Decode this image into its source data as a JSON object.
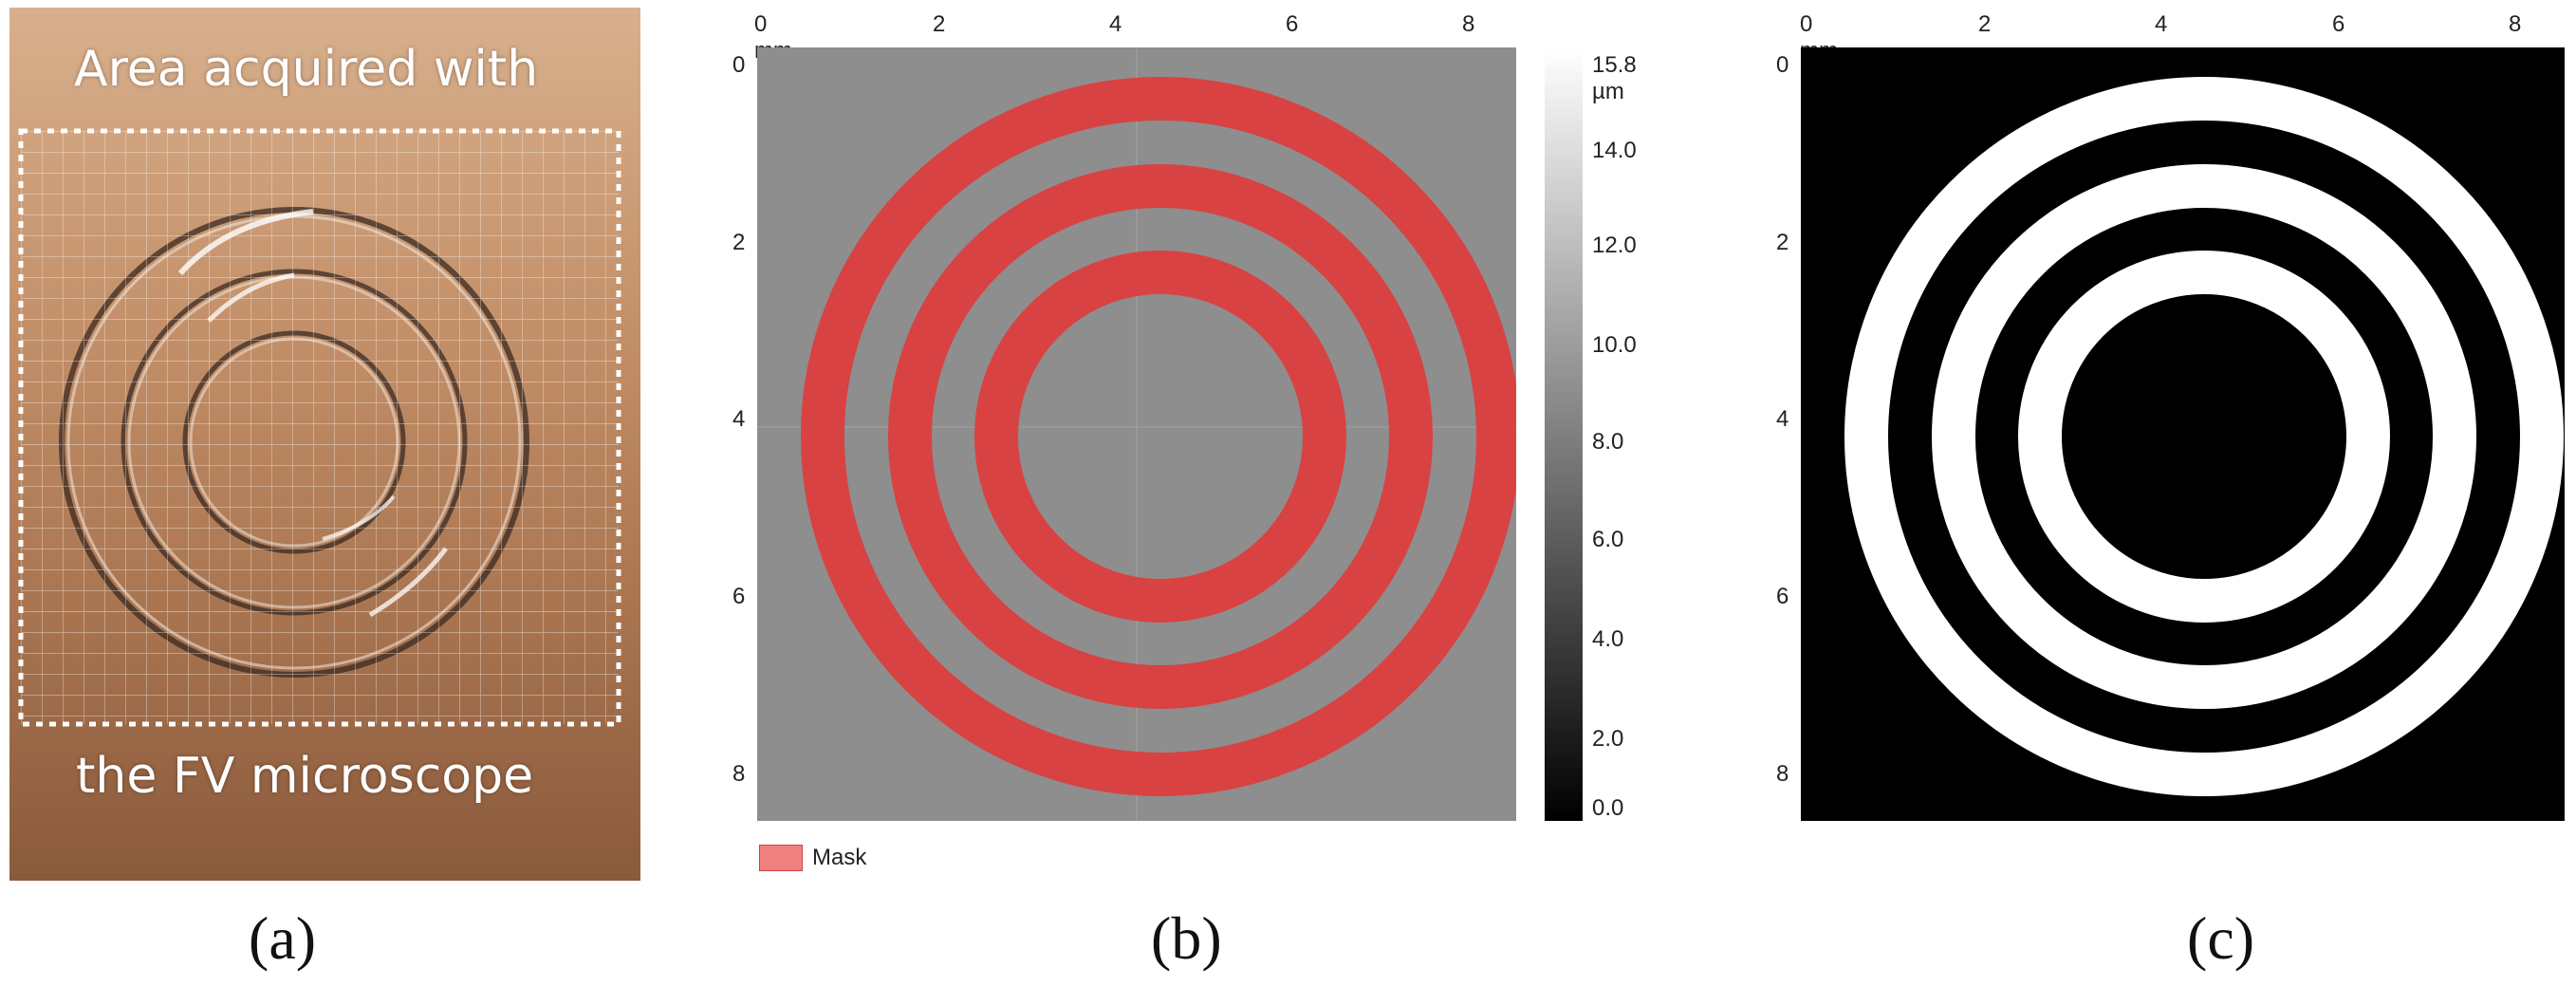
{
  "panel_a": {
    "caption": "(a)",
    "top_text": "Area acquired with",
    "bottom_text": "the FV microscope",
    "colors": {
      "bg_top": "#d9b18e",
      "bg_bottom": "#8a5a3c"
    }
  },
  "panel_b": {
    "caption": "(b)",
    "legend_label": "Mask",
    "colorbar_ticks": [
      "15.8 µm",
      "14.0",
      "12.0",
      "10.0",
      "8.0",
      "6.0",
      "4.0",
      "2.0",
      "0.0"
    ],
    "colors": {
      "mask": "#e23a3a",
      "surface": "#8e8e8e"
    }
  },
  "panel_c": {
    "caption": "(c)"
  },
  "axes": {
    "x_ticks": [
      "0 mm",
      "2",
      "4",
      "6",
      "8"
    ],
    "y_ticks": [
      "0",
      "2",
      "4",
      "6",
      "8"
    ]
  }
}
